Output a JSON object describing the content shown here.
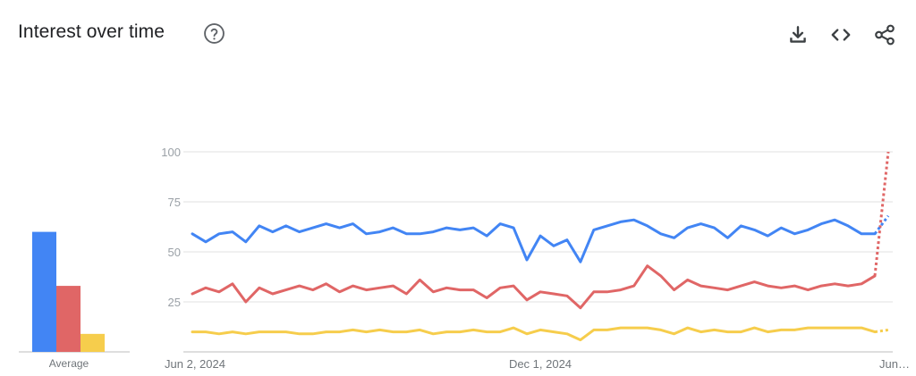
{
  "header": {
    "title": "Interest over time",
    "help_icon": "help-circle-icon",
    "actions": [
      {
        "name": "download",
        "icon": "download-icon"
      },
      {
        "name": "embed",
        "icon": "code-icon"
      },
      {
        "name": "share",
        "icon": "share-icon"
      }
    ]
  },
  "colors": {
    "blue": "#4285f4",
    "red": "#db4437",
    "yellow": "#f4c20d",
    "grid": "#e0e0e0",
    "axis": "#9aa0a6"
  },
  "chart_data": [
    {
      "type": "bar",
      "categories": [
        "Average"
      ],
      "series": [
        {
          "values": [
            60
          ],
          "color": "#4285f4"
        },
        {
          "values": [
            33
          ],
          "color": "#e06666"
        },
        {
          "values": [
            9
          ],
          "color": "#f6cd4c"
        }
      ],
      "xlabel": "Average",
      "ylim": [
        0,
        100
      ]
    },
    {
      "type": "line",
      "x_tick_labels": [
        "Jun 2, 2024",
        "Dec 1, 2024",
        "Jun…"
      ],
      "y_ticks": [
        25,
        50,
        75,
        100
      ],
      "ylim": [
        0,
        100
      ],
      "grid": true,
      "partial_last_point": "dotted",
      "series": [
        {
          "color": "#4285f4",
          "values": [
            59,
            55,
            59,
            60,
            55,
            63,
            60,
            63,
            60,
            62,
            64,
            62,
            64,
            59,
            60,
            62,
            59,
            59,
            60,
            62,
            61,
            62,
            58,
            64,
            62,
            46,
            58,
            53,
            56,
            45,
            61,
            63,
            65,
            66,
            63,
            59,
            57,
            62,
            64,
            62,
            57,
            63,
            61,
            58,
            62,
            59,
            61,
            64,
            66,
            63,
            59,
            59,
            68
          ]
        },
        {
          "color": "#e06666",
          "values": [
            29,
            32,
            30,
            34,
            25,
            32,
            29,
            31,
            33,
            31,
            34,
            30,
            33,
            31,
            32,
            33,
            29,
            36,
            30,
            32,
            31,
            31,
            27,
            32,
            33,
            26,
            30,
            29,
            28,
            22,
            30,
            30,
            31,
            33,
            43,
            38,
            31,
            36,
            33,
            32,
            31,
            33,
            35,
            33,
            32,
            33,
            31,
            33,
            34,
            33,
            34,
            38,
            100
          ]
        },
        {
          "color": "#f6cd4c",
          "values": [
            10,
            10,
            9,
            10,
            9,
            10,
            10,
            10,
            9,
            9,
            10,
            10,
            11,
            10,
            11,
            10,
            10,
            11,
            9,
            10,
            10,
            11,
            10,
            10,
            12,
            9,
            11,
            10,
            9,
            6,
            11,
            11,
            12,
            12,
            12,
            11,
            9,
            12,
            10,
            11,
            10,
            10,
            12,
            10,
            11,
            11,
            12,
            12,
            12,
            12,
            12,
            10,
            11
          ]
        }
      ]
    }
  ]
}
